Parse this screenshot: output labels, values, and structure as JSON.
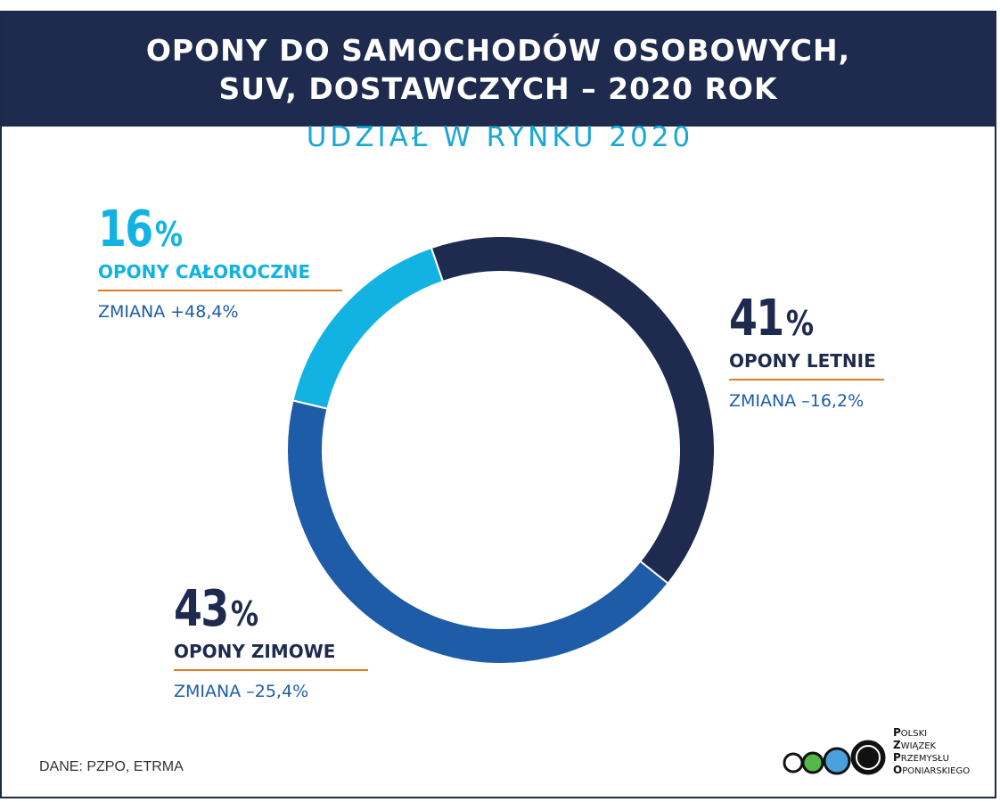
{
  "header": {
    "title_line1": "OPONY DO SAMOCHODÓW OSOBOWYCH,",
    "title_line2": "SUV, DOSTAWCZYCH – 2020 ROK"
  },
  "subtitle": "UDZIAŁ W RYNKU 2020",
  "chart_data": {
    "type": "pie",
    "style": "donut",
    "title": "UDZIAŁ W RYNKU 2020",
    "unit": "%",
    "slices": [
      {
        "label": "OPONY LETNIE",
        "value": 41,
        "change": "ZMIANA –16,2%",
        "color": "#1e2b4e"
      },
      {
        "label": "OPONY ZIMOWE",
        "value": 43,
        "change": "ZMIANA –25,4%",
        "color": "#1e5ca8"
      },
      {
        "label": "OPONY CAŁOROCZNE",
        "value": 16,
        "change": "ZMIANA +48,4%",
        "color": "#12b3e3"
      }
    ]
  },
  "colors": {
    "header_bg": "#1e2b4e",
    "subtitle": "#1aa7d6",
    "accent_underline": "#e27a25",
    "change_text": "#1e5ca8"
  },
  "source": "DANE: PZPO, ETRMA",
  "logo": {
    "lines": [
      {
        "initial": "P",
        "rest": "OLSKI"
      },
      {
        "initial": "Z",
        "rest": "WIĄZEK"
      },
      {
        "initial": "P",
        "rest": "RZEMYSŁU"
      },
      {
        "initial": "O",
        "rest": "PONIARSKIEGO"
      }
    ]
  }
}
